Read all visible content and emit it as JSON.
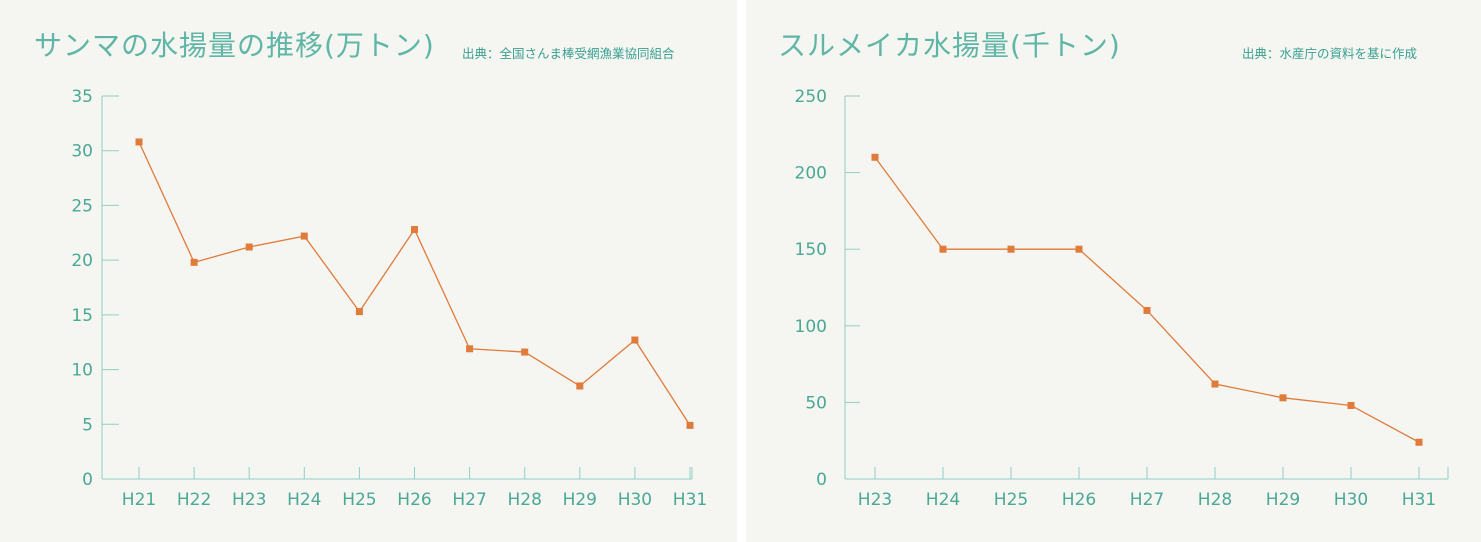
{
  "chart_data": [
    {
      "type": "line",
      "title": "サンマの水揚量の推移(万トン)",
      "source": "出典：全国さんま棒受網漁業協同組合",
      "categories": [
        "H21",
        "H22",
        "H23",
        "H24",
        "H25",
        "H26",
        "H27",
        "H28",
        "H29",
        "H30",
        "H31"
      ],
      "series": [
        {
          "values": [
            30.8,
            19.8,
            21.2,
            22.2,
            15.3,
            22.8,
            11.9,
            11.6,
            8.5,
            12.7,
            4.9
          ]
        }
      ],
      "ylim": [
        0,
        35
      ],
      "yticks": [
        "0",
        "5",
        "10",
        "15",
        "20",
        "25",
        "30",
        "35"
      ],
      "grid": false,
      "colors": {
        "line": "#e07b39",
        "axis": "#8fd0c4",
        "text": "#4aa895"
      }
    },
    {
      "type": "line",
      "title": "スルメイカ水揚量(千トン)",
      "source": "出典：水産庁の資料を基に作成",
      "categories": [
        "H23",
        "H24",
        "H25",
        "H26",
        "H27",
        "H28",
        "H29",
        "H30",
        "H31"
      ],
      "series": [
        {
          "values": [
            210,
            150,
            150,
            150,
            110,
            62,
            53,
            48,
            24
          ]
        }
      ],
      "ylim": [
        0,
        250
      ],
      "yticks": [
        "0",
        "50",
        "100",
        "150",
        "200",
        "250"
      ],
      "grid": false,
      "colors": {
        "line": "#e07b39",
        "axis": "#8fd0c4",
        "text": "#4aa895"
      }
    }
  ]
}
